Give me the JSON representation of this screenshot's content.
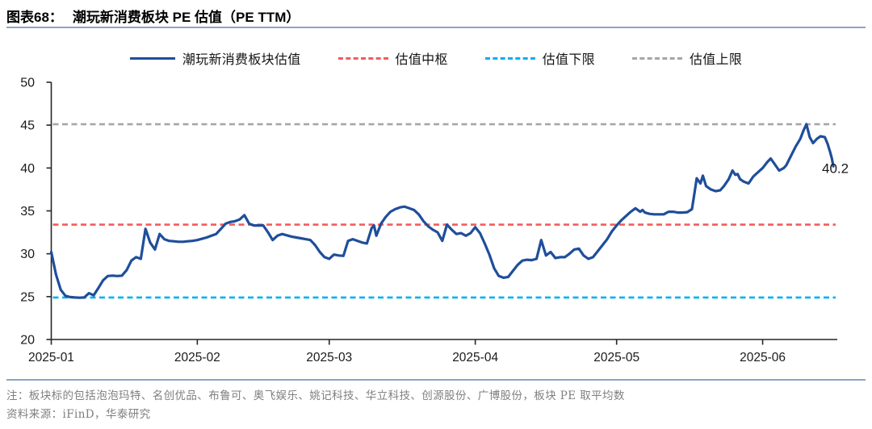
{
  "header": {
    "figure_label": "图表68：",
    "figure_title": "潮玩新消费板块 PE 估值（PE TTM）"
  },
  "legend": {
    "items": [
      {
        "label": "潮玩新消费板块估值",
        "color": "#1f4e9b",
        "style": "solid"
      },
      {
        "label": "估值中枢",
        "color": "#f25c5c",
        "style": "dashed"
      },
      {
        "label": "估值下限",
        "color": "#00b0f0",
        "style": "dashed"
      },
      {
        "label": "估值上限",
        "color": "#a6a6a6",
        "style": "dashed"
      }
    ]
  },
  "chart_data": {
    "type": "line",
    "title": "潮玩新消费板块 PE 估值（PE TTM）",
    "x_unit": "days since 2025-01-01",
    "xlim": [
      0,
      166.5
    ],
    "ylim": [
      20,
      50
    ],
    "y_ticks": [
      20,
      25,
      30,
      35,
      40,
      45,
      50
    ],
    "x_ticks": [
      {
        "day": 0,
        "label": "2025-01"
      },
      {
        "day": 31,
        "label": "2025-02"
      },
      {
        "day": 59,
        "label": "2025-03"
      },
      {
        "day": 90,
        "label": "2025-04"
      },
      {
        "day": 120,
        "label": "2025-05"
      },
      {
        "day": 151,
        "label": "2025-06"
      }
    ],
    "grid": false,
    "legend_position": "top",
    "reference_lines": [
      {
        "name": "估值上限",
        "value": 45.1,
        "color": "#a6a6a6",
        "style": "dashed"
      },
      {
        "name": "估值中枢",
        "value": 33.4,
        "color": "#f25c5c",
        "style": "dashed"
      },
      {
        "name": "估值下限",
        "value": 24.9,
        "color": "#00b0f0",
        "style": "dashed"
      }
    ],
    "series": [
      {
        "name": "潮玩新消费板块估值",
        "color": "#1f4e9b",
        "points": [
          [
            0,
            30.2
          ],
          [
            1,
            27.6
          ],
          [
            2,
            25.8
          ],
          [
            3,
            25.1
          ],
          [
            4,
            24.95
          ],
          [
            5,
            24.9
          ],
          [
            6,
            24.87
          ],
          [
            7,
            24.9
          ],
          [
            8,
            25.4
          ],
          [
            9,
            25.15
          ],
          [
            10,
            26.0
          ],
          [
            11,
            26.9
          ],
          [
            12,
            27.4
          ],
          [
            13,
            27.45
          ],
          [
            14,
            27.4
          ],
          [
            15,
            27.45
          ],
          [
            16,
            28.1
          ],
          [
            17,
            29.2
          ],
          [
            18,
            29.6
          ],
          [
            19,
            29.4
          ],
          [
            20,
            32.9
          ],
          [
            21,
            31.3
          ],
          [
            22,
            30.5
          ],
          [
            23,
            32.3
          ],
          [
            24,
            31.7
          ],
          [
            25,
            31.5
          ],
          [
            26,
            31.45
          ],
          [
            27,
            31.4
          ],
          [
            28,
            31.4
          ],
          [
            29,
            31.45
          ],
          [
            30,
            31.5
          ],
          [
            31,
            31.6
          ],
          [
            32,
            31.75
          ],
          [
            33,
            31.9
          ],
          [
            34,
            32.1
          ],
          [
            35,
            32.3
          ],
          [
            36,
            32.9
          ],
          [
            37,
            33.5
          ],
          [
            38,
            33.7
          ],
          [
            39,
            33.8
          ],
          [
            40,
            34.0
          ],
          [
            41,
            34.5
          ],
          [
            42,
            33.5
          ],
          [
            43,
            33.3
          ],
          [
            44,
            33.3
          ],
          [
            45,
            33.3
          ],
          [
            46,
            32.5
          ],
          [
            47,
            31.6
          ],
          [
            48,
            32.1
          ],
          [
            49,
            32.3
          ],
          [
            50,
            32.15
          ],
          [
            51,
            32.0
          ],
          [
            52,
            31.9
          ],
          [
            53,
            31.8
          ],
          [
            54,
            31.7
          ],
          [
            55,
            31.6
          ],
          [
            56,
            31.0
          ],
          [
            57,
            30.2
          ],
          [
            58,
            29.6
          ],
          [
            59,
            29.4
          ],
          [
            60,
            29.9
          ],
          [
            61,
            29.8
          ],
          [
            62,
            29.75
          ],
          [
            63,
            31.5
          ],
          [
            64,
            31.7
          ],
          [
            65,
            31.5
          ],
          [
            66,
            31.3
          ],
          [
            67,
            31.2
          ],
          [
            68,
            33.0
          ],
          [
            68.5,
            33.3
          ],
          [
            69,
            32.1
          ],
          [
            70,
            33.5
          ],
          [
            71,
            34.3
          ],
          [
            72,
            34.9
          ],
          [
            73,
            35.2
          ],
          [
            74,
            35.4
          ],
          [
            75,
            35.5
          ],
          [
            76,
            35.3
          ],
          [
            77,
            35.1
          ],
          [
            78,
            34.6
          ],
          [
            79,
            33.8
          ],
          [
            80,
            33.2
          ],
          [
            81,
            32.8
          ],
          [
            82,
            32.5
          ],
          [
            83,
            31.5
          ],
          [
            84,
            33.4
          ],
          [
            85,
            32.8
          ],
          [
            86,
            32.3
          ],
          [
            87,
            32.4
          ],
          [
            88,
            32.1
          ],
          [
            89,
            32.4
          ],
          [
            90,
            33.1
          ],
          [
            91,
            32.4
          ],
          [
            92,
            31.2
          ],
          [
            93,
            29.9
          ],
          [
            94,
            28.3
          ],
          [
            95,
            27.4
          ],
          [
            96,
            27.2
          ],
          [
            97,
            27.3
          ],
          [
            98,
            28.0
          ],
          [
            99,
            28.7
          ],
          [
            100,
            29.2
          ],
          [
            101,
            29.3
          ],
          [
            102,
            29.25
          ],
          [
            103,
            29.4
          ],
          [
            104,
            31.6
          ],
          [
            105,
            29.8
          ],
          [
            106,
            30.2
          ],
          [
            107,
            29.5
          ],
          [
            108,
            29.6
          ],
          [
            109,
            29.6
          ],
          [
            110,
            30.0
          ],
          [
            111,
            30.5
          ],
          [
            112,
            30.6
          ],
          [
            113,
            29.8
          ],
          [
            114,
            29.4
          ],
          [
            115,
            29.6
          ],
          [
            116,
            30.3
          ],
          [
            117,
            31.0
          ],
          [
            118,
            31.7
          ],
          [
            119,
            32.6
          ],
          [
            120,
            33.3
          ],
          [
            121,
            33.9
          ],
          [
            122,
            34.4
          ],
          [
            123,
            34.9
          ],
          [
            124,
            35.3
          ],
          [
            125,
            34.9
          ],
          [
            125.5,
            35.1
          ],
          [
            126,
            34.8
          ],
          [
            127,
            34.65
          ],
          [
            128,
            34.6
          ],
          [
            129,
            34.6
          ],
          [
            130,
            34.6
          ],
          [
            131,
            34.9
          ],
          [
            132,
            34.9
          ],
          [
            133,
            34.8
          ],
          [
            134,
            34.8
          ],
          [
            135,
            34.85
          ],
          [
            136,
            35.2
          ],
          [
            136.5,
            37.0
          ],
          [
            137,
            38.8
          ],
          [
            137.8,
            38.2
          ],
          [
            138.3,
            39.1
          ],
          [
            139,
            37.9
          ],
          [
            140,
            37.5
          ],
          [
            141,
            37.3
          ],
          [
            142,
            37.4
          ],
          [
            142.8,
            37.9
          ],
          [
            143.8,
            38.7
          ],
          [
            144.6,
            39.7
          ],
          [
            145.2,
            39.2
          ],
          [
            145.7,
            39.3
          ],
          [
            146.2,
            38.7
          ],
          [
            147,
            38.4
          ],
          [
            148,
            38.2
          ],
          [
            149,
            39.0
          ],
          [
            150,
            39.5
          ],
          [
            151,
            40.0
          ],
          [
            152,
            40.7
          ],
          [
            152.7,
            41.1
          ],
          [
            153.5,
            40.5
          ],
          [
            154.5,
            39.7
          ],
          [
            155.5,
            40.0
          ],
          [
            156,
            40.3
          ],
          [
            157,
            41.4
          ],
          [
            158,
            42.5
          ],
          [
            159,
            43.4
          ],
          [
            159.7,
            44.4
          ],
          [
            160.3,
            45.1
          ],
          [
            161,
            43.6
          ],
          [
            161.7,
            42.9
          ],
          [
            162.5,
            43.4
          ],
          [
            163.3,
            43.7
          ],
          [
            164.2,
            43.6
          ],
          [
            164.8,
            42.8
          ],
          [
            165.3,
            41.9
          ],
          [
            165.7,
            41.1
          ],
          [
            166,
            40.2
          ]
        ]
      }
    ],
    "end_label": {
      "text": "40.2",
      "day": 166,
      "value": 40.2
    }
  },
  "footer": {
    "note": "注：板块标的包括泡泡玛特、名创优品、布鲁可、奥飞娱乐、姚记科技、华立科技、创源股份、广博股份，板块 PE 取平均数",
    "source": "资料来源：iFinD，华泰研究"
  },
  "colors": {
    "series_line": "#1f4e9b",
    "center_line": "#f25c5c",
    "lower_line": "#00b0f0",
    "upper_line": "#a6a6a6",
    "header_rule": "#8da4c4",
    "axis": "#262626",
    "note_text": "#7f7f7f"
  }
}
